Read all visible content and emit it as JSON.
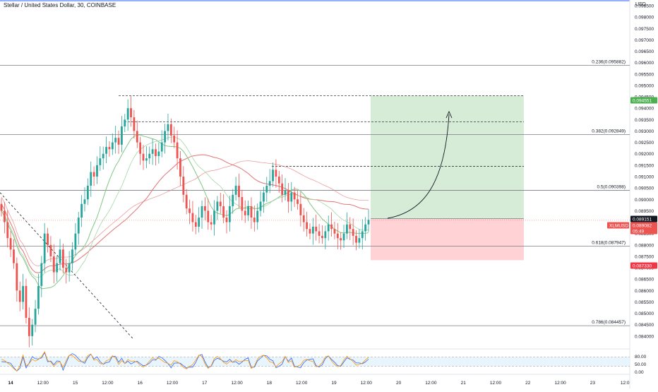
{
  "header": {
    "title": "Stellar / United States Dollar, 30, COINBASE",
    "currency": "USD"
  },
  "colors": {
    "up": "#26a69a",
    "down": "#ef5350",
    "grid": "#f0f3fa",
    "fib_line": "#787b86",
    "ma_red": "#e57373",
    "ma_green": "#81c784",
    "target_zone": "#c8e6c9",
    "stop_zone": "#ffcdd2",
    "rsi_blue": "#2962ff",
    "rsi_orange": "#ff9800",
    "rsi_band": "#e3f2fd"
  },
  "chart_data": {
    "type": "candlestick",
    "price_axis": {
      "min": 0.0835,
      "max": 0.0985,
      "ticks": [
        "0.098500",
        "0.098000",
        "0.097500",
        "0.097000",
        "0.096500",
        "0.096000",
        "0.095500",
        "0.095000",
        "0.094500",
        "0.094000",
        "0.093500",
        "0.093000",
        "0.092500",
        "0.092000",
        "0.091500",
        "0.091000",
        "0.090500",
        "0.090000",
        "0.089500",
        "0.089000",
        "0.088500",
        "0.088000",
        "0.087500",
        "0.087000",
        "0.086500",
        "0.086000",
        "0.085500",
        "0.085000",
        "0.084500",
        "0.084000"
      ]
    },
    "time_axis": {
      "ticks": [
        {
          "label": "14",
          "bold": true
        },
        {
          "label": "12:00"
        },
        {
          "label": "15"
        },
        {
          "label": "12:00"
        },
        {
          "label": "16"
        },
        {
          "label": "12:00"
        },
        {
          "label": "17"
        },
        {
          "label": "12:00"
        },
        {
          "label": "18"
        },
        {
          "label": "12:00"
        },
        {
          "label": "19"
        },
        {
          "label": "12:00"
        },
        {
          "label": "20"
        },
        {
          "label": "12:00"
        },
        {
          "label": "21"
        },
        {
          "label": "12:00"
        },
        {
          "label": "22"
        },
        {
          "label": "12:00"
        },
        {
          "label": "23"
        },
        {
          "label": "12:0"
        }
      ]
    },
    "fib_levels": [
      {
        "ratio": "0.236",
        "value": 0.095882,
        "label": "0.236(0.095882)"
      },
      {
        "ratio": "0.382",
        "value": 0.092849,
        "label": "0.382(0.092849)"
      },
      {
        "ratio": "0.5",
        "value": 0.090398,
        "label": "0.5(0.090398)"
      },
      {
        "ratio": "0.618",
        "value": 0.087947,
        "label": "0.618(0.087947)"
      },
      {
        "ratio": "0.786",
        "value": 0.084457,
        "label": "0.786(0.084457)"
      }
    ],
    "resistance_levels": [
      0.094551,
      0.0934,
      0.09145
    ],
    "position": {
      "entry": 0.089151,
      "target": 0.094551,
      "stop": 0.08733
    },
    "price_badges": [
      {
        "id": "target",
        "text": "0.094551",
        "value": 0.094551,
        "color": "#4caf50"
      },
      {
        "id": "entry",
        "text": "0.089151",
        "value": 0.089151,
        "color": "#131722"
      },
      {
        "id": "symbol",
        "text": "XLMUSD",
        "value": 0.089,
        "color": "#ef5350"
      },
      {
        "id": "last",
        "text": "0.089082",
        "value": 0.089082,
        "color": "#ef5350"
      },
      {
        "id": "timer",
        "text": "05:49",
        "value": 0.08875,
        "color": "#ef5350"
      },
      {
        "id": "stop",
        "text": "0.087330",
        "value": 0.08733,
        "color": "#f23645"
      }
    ],
    "rsi": {
      "levels": [
        "80.00",
        "50.00",
        "0.00"
      ],
      "upper": 70,
      "lower": 30
    },
    "close_series": [
      0.0895,
      0.089,
      0.0883,
      0.0878,
      0.0872,
      0.086,
      0.0855,
      0.0862,
      0.0848,
      0.084,
      0.0845,
      0.0852,
      0.0862,
      0.0872,
      0.0885,
      0.088,
      0.0875,
      0.0868,
      0.0872,
      0.0878,
      0.087,
      0.0868,
      0.0872,
      0.0878,
      0.0885,
      0.0892,
      0.0898,
      0.09,
      0.0906,
      0.0912,
      0.091,
      0.0915,
      0.0918,
      0.092,
      0.0923,
      0.0922,
      0.0925,
      0.0927,
      0.0924,
      0.0932,
      0.0935,
      0.094,
      0.0936,
      0.093,
      0.0925,
      0.092,
      0.0917,
      0.0918,
      0.092,
      0.0922,
      0.0919,
      0.0921,
      0.0925,
      0.093,
      0.0933,
      0.0928,
      0.0925,
      0.0918,
      0.091,
      0.0902,
      0.0896,
      0.0894,
      0.089,
      0.0888,
      0.0892,
      0.0897,
      0.0895,
      0.089,
      0.0889,
      0.0895,
      0.0899,
      0.0897,
      0.0892,
      0.089,
      0.0897,
      0.0902,
      0.0906,
      0.0901,
      0.0895,
      0.0893,
      0.0897,
      0.0892,
      0.089,
      0.0895,
      0.0899,
      0.0903,
      0.0906,
      0.0908,
      0.0913,
      0.091,
      0.0907,
      0.0902,
      0.0904,
      0.0899,
      0.0903,
      0.09,
      0.0898,
      0.0893,
      0.089,
      0.0887,
      0.0885,
      0.0888,
      0.0886,
      0.0884,
      0.0883,
      0.0886,
      0.0889,
      0.0887,
      0.0885,
      0.0883,
      0.0882,
      0.0885,
      0.0889,
      0.0887,
      0.0884,
      0.0881,
      0.0883,
      0.0886,
      0.0889,
      0.0891
    ]
  },
  "annotations": {
    "target_arrow": true
  }
}
